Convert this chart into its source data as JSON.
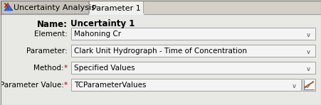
{
  "bg_color": "#d4d0c8",
  "tab_inactive_bg": "#c8c4bc",
  "active_tab_bg": "#f0f0ee",
  "panel_bg": "#e8e8e4",
  "field_bg": "#f4f4f4",
  "field_border": "#a0a0a0",
  "tab1_label": "Uncertainty Analysis",
  "tab2_label": "Parameter 1",
  "name_label": "Name:",
  "name_value": "Uncertainty 1",
  "rows": [
    {
      "label": "Element:",
      "value": "Mahoning Cr",
      "asterisk": false,
      "has_btn": false
    },
    {
      "label": "Parameter:",
      "value": "Clark Unit Hydrograph - Time of Concentration",
      "asterisk": false,
      "has_btn": false
    },
    {
      "label": "Method:",
      "value": "Specified Values",
      "asterisk": true,
      "has_btn": false
    },
    {
      "label": "Parameter Value:",
      "value": "TCParameterValues",
      "asterisk": true,
      "has_btn": true
    }
  ],
  "label_color": "#000000",
  "asterisk_color": "#cc0000",
  "value_color": "#000000",
  "name_fontsize": 8.5,
  "label_fontsize": 7.5,
  "tab_fontsize": 8,
  "chevron": "v"
}
